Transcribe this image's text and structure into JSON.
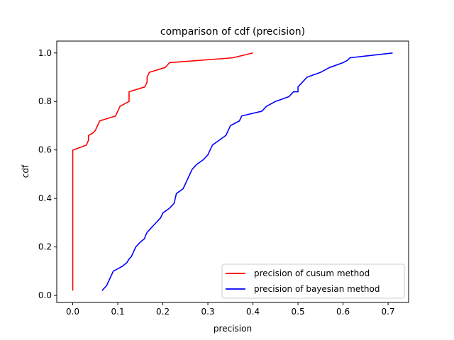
{
  "chart_data": {
    "type": "line",
    "title": "comparison of cdf (precision)",
    "xlabel": "precision",
    "ylabel": "cdf",
    "xlim": [
      -0.0355,
      0.7455
    ],
    "ylim": [
      -0.029,
      1.049
    ],
    "xticks": [
      0.0,
      0.1,
      0.2,
      0.3,
      0.4,
      0.5,
      0.6,
      0.7
    ],
    "xtick_labels": [
      "0.0",
      "0.1",
      "0.2",
      "0.3",
      "0.4",
      "0.5",
      "0.6",
      "0.7"
    ],
    "yticks": [
      0.0,
      0.2,
      0.4,
      0.6,
      0.8,
      1.0
    ],
    "ytick_labels": [
      "0.0",
      "0.2",
      "0.4",
      "0.6",
      "0.8",
      "1.0"
    ],
    "grid": false,
    "legend_position": "lower-right",
    "series": [
      {
        "name": "precision of cusum method",
        "color": "#ff0000",
        "x": [
          0.0,
          0.0,
          0.0,
          0.001,
          0.03,
          0.035,
          0.035,
          0.045,
          0.05,
          0.055,
          0.06,
          0.095,
          0.1,
          0.105,
          0.125,
          0.125,
          0.16,
          0.165,
          0.165,
          0.17,
          0.205,
          0.21,
          0.215,
          0.355,
          0.4
        ],
        "y": [
          0.02,
          0.4,
          0.6,
          0.6,
          0.62,
          0.64,
          0.66,
          0.67,
          0.68,
          0.7,
          0.72,
          0.74,
          0.76,
          0.78,
          0.8,
          0.84,
          0.86,
          0.88,
          0.9,
          0.92,
          0.94,
          0.95,
          0.96,
          0.98,
          1.0
        ]
      },
      {
        "name": "precision of bayesian method",
        "color": "#0000ff",
        "x": [
          0.065,
          0.075,
          0.085,
          0.09,
          0.1,
          0.11,
          0.12,
          0.125,
          0.13,
          0.135,
          0.14,
          0.15,
          0.16,
          0.16,
          0.165,
          0.175,
          0.185,
          0.19,
          0.195,
          0.2,
          0.215,
          0.22,
          0.225,
          0.23,
          0.245,
          0.25,
          0.255,
          0.26,
          0.265,
          0.27,
          0.275,
          0.29,
          0.3,
          0.305,
          0.31,
          0.325,
          0.34,
          0.345,
          0.35,
          0.37,
          0.375,
          0.42,
          0.43,
          0.45,
          0.48,
          0.49,
          0.5,
          0.5,
          0.51,
          0.52,
          0.55,
          0.57,
          0.6,
          0.61,
          0.615,
          0.71
        ],
        "y": [
          0.02,
          0.04,
          0.08,
          0.1,
          0.11,
          0.12,
          0.135,
          0.15,
          0.16,
          0.18,
          0.2,
          0.22,
          0.235,
          0.24,
          0.26,
          0.28,
          0.3,
          0.31,
          0.32,
          0.34,
          0.36,
          0.37,
          0.38,
          0.42,
          0.44,
          0.46,
          0.48,
          0.5,
          0.52,
          0.53,
          0.54,
          0.56,
          0.58,
          0.6,
          0.62,
          0.64,
          0.66,
          0.68,
          0.7,
          0.72,
          0.74,
          0.76,
          0.78,
          0.8,
          0.82,
          0.84,
          0.84,
          0.86,
          0.88,
          0.9,
          0.92,
          0.94,
          0.96,
          0.97,
          0.98,
          1.0
        ]
      }
    ]
  }
}
